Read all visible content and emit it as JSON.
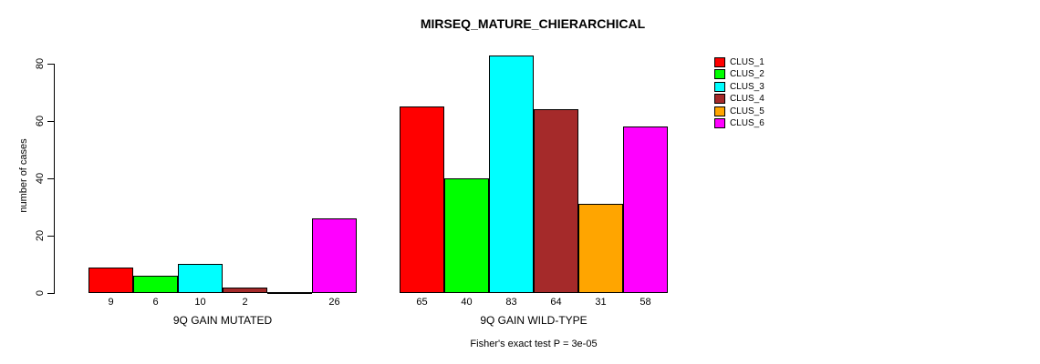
{
  "chart_data": {
    "type": "bar",
    "title": "MIRSEQ_MATURE_CHIERARCHICAL",
    "ylabel": "number of cases",
    "xlabel": "",
    "annotation": "Fisher's exact test P = 3e-05",
    "categories": [
      "9Q GAIN MUTATED",
      "9Q GAIN WILD-TYPE"
    ],
    "series": [
      {
        "name": "CLUS_1",
        "color": "#FF0000",
        "values": [
          9,
          65
        ]
      },
      {
        "name": "CLUS_2",
        "color": "#00FF00",
        "values": [
          6,
          40
        ]
      },
      {
        "name": "CLUS_3",
        "color": "#00FFFF",
        "values": [
          10,
          83
        ]
      },
      {
        "name": "CLUS_4",
        "color": "#A52A2A",
        "values": [
          2,
          64
        ]
      },
      {
        "name": "CLUS_5",
        "color": "#FFA500",
        "values": [
          0,
          31
        ]
      },
      {
        "name": "CLUS_6",
        "color": "#FF00FF",
        "values": [
          26,
          58
        ]
      }
    ],
    "yticks": [
      0,
      20,
      40,
      60,
      80
    ],
    "ylim": [
      0,
      85
    ],
    "grid": false,
    "bar_value_labels_shown": true,
    "zero_value_label_hidden": true,
    "legend_position": "right",
    "legend_entries": [
      "CLUS_1",
      "CLUS_2",
      "CLUS_3",
      "CLUS_4",
      "CLUS_5",
      "CLUS_6"
    ],
    "axis_color": "#000000",
    "bar_border_color": "#000000"
  }
}
